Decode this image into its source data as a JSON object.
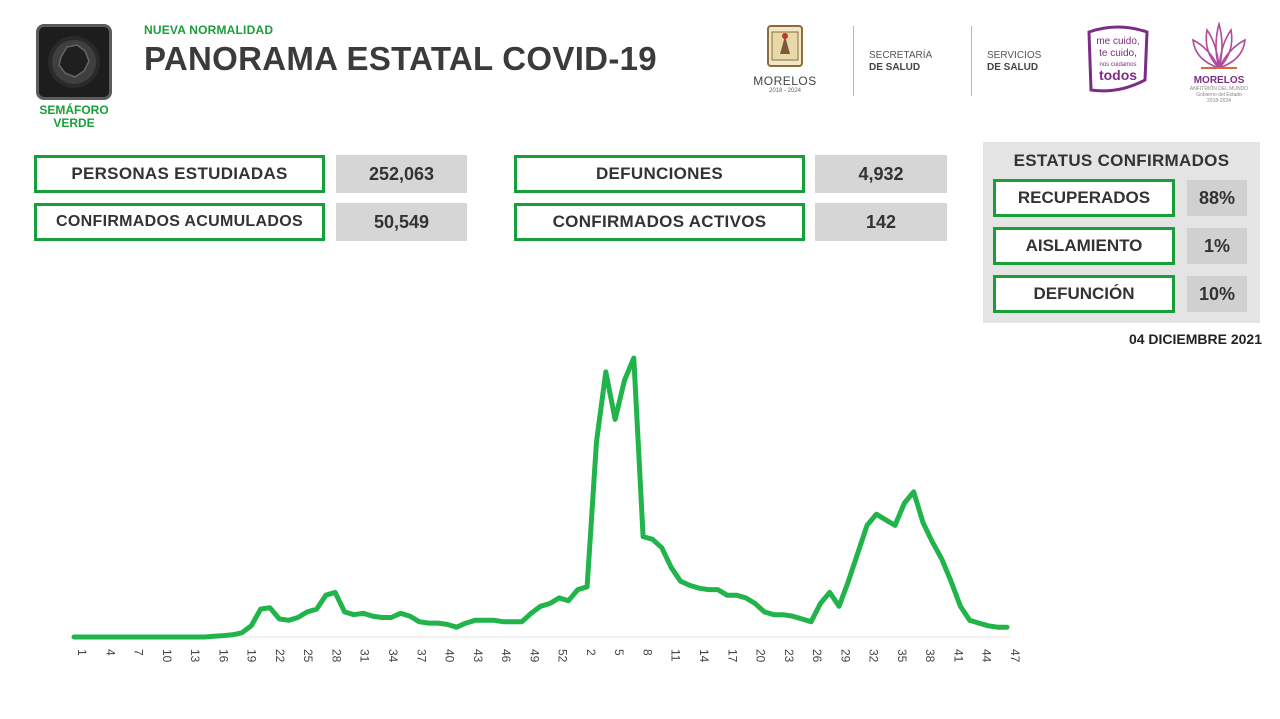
{
  "header": {
    "semaforo_label_1": "SEMÁFORO",
    "semaforo_label_2": "VERDE",
    "subtitle": "NUEVA NORMALIDAD",
    "title": "PANORAMA ESTATAL COVID-19",
    "logos": {
      "morelos_name": "MORELOS",
      "morelos_years": "2018 - 2024",
      "secretaria_line1": "SECRETARÍA",
      "secretaria_line2": "DE SALUD",
      "servicios_line1": "SERVICIOS",
      "servicios_line2": "DE SALUD",
      "todos_line1": "me cuido,",
      "todos_line2": "te cuido,",
      "todos_line3": "nos cuidamos",
      "todos_line4": "todos",
      "flor_name": "MORELOS",
      "flor_tag1": "ANFITRIÓN DEL MUNDO",
      "flor_tag2": "Gobierno del Estado",
      "flor_tag3": "2018-2024"
    }
  },
  "stats": {
    "personas_estudiadas_label": "PERSONAS ESTUDIADAS",
    "personas_estudiadas_value": "252,063",
    "confirmados_acumulados_label": "CONFIRMADOS ACUMULADOS",
    "confirmados_acumulados_value": "50,549",
    "defunciones_label": "DEFUNCIONES",
    "defunciones_value": "4,932",
    "confirmados_activos_label": "CONFIRMADOS ACTIVOS",
    "confirmados_activos_value": "142"
  },
  "estatus": {
    "title": "ESTATUS CONFIRMADOS",
    "recuperados_label": "RECUPERADOS",
    "recuperados_value": "88%",
    "aislamiento_label": "AISLAMIENTO",
    "aislamiento_value": "1%",
    "defuncion_label": "DEFUNCIÓN",
    "defuncion_value": "10%"
  },
  "report_date": "04 DICIEMBRE 2021",
  "colors": {
    "accent_green": "#1a9e3a",
    "line_green": "#21b44b",
    "value_box_gray": "#d6d6d6",
    "panel_gray": "#e4e4e4",
    "brand_purple": "#7b2d84"
  },
  "chart_data": {
    "type": "line",
    "title": "",
    "xlabel": "",
    "ylabel": "",
    "grid": false,
    "legend": "none",
    "x_tick_labels": [
      "1",
      "4",
      "7",
      "10",
      "13",
      "16",
      "19",
      "22",
      "25",
      "28",
      "31",
      "34",
      "37",
      "40",
      "43",
      "46",
      "49",
      "52",
      "2",
      "5",
      "8",
      "11",
      "14",
      "17",
      "20",
      "23",
      "26",
      "29",
      "32",
      "35",
      "38",
      "41",
      "44",
      "47"
    ],
    "ylim": [
      0,
      100
    ],
    "series": [
      {
        "values": [
          0,
          0,
          0,
          0,
          0,
          0,
          0,
          0,
          0,
          0,
          0,
          0,
          0,
          0,
          0,
          0.3,
          0.5,
          0.8,
          1.5,
          4,
          10,
          10.5,
          6.5,
          6,
          7,
          9,
          10,
          15,
          16,
          9,
          8,
          8.5,
          7.5,
          7,
          7,
          8.5,
          7.5,
          5.5,
          5,
          5,
          4.5,
          3.5,
          5,
          6,
          6,
          6,
          5.5,
          5.5,
          5.5,
          8.5,
          11,
          12,
          14,
          13,
          17,
          18,
          70,
          95,
          78,
          92,
          100,
          36,
          35,
          32,
          25,
          20,
          18.5,
          17.5,
          17,
          17,
          15,
          15,
          14,
          12,
          9,
          8,
          8,
          7.5,
          6.5,
          5.5,
          12,
          16,
          11,
          20,
          30,
          40,
          44,
          42,
          40,
          48,
          52,
          41,
          34,
          28,
          20,
          11,
          6,
          5,
          4,
          3.5,
          3.5
        ]
      }
    ]
  }
}
